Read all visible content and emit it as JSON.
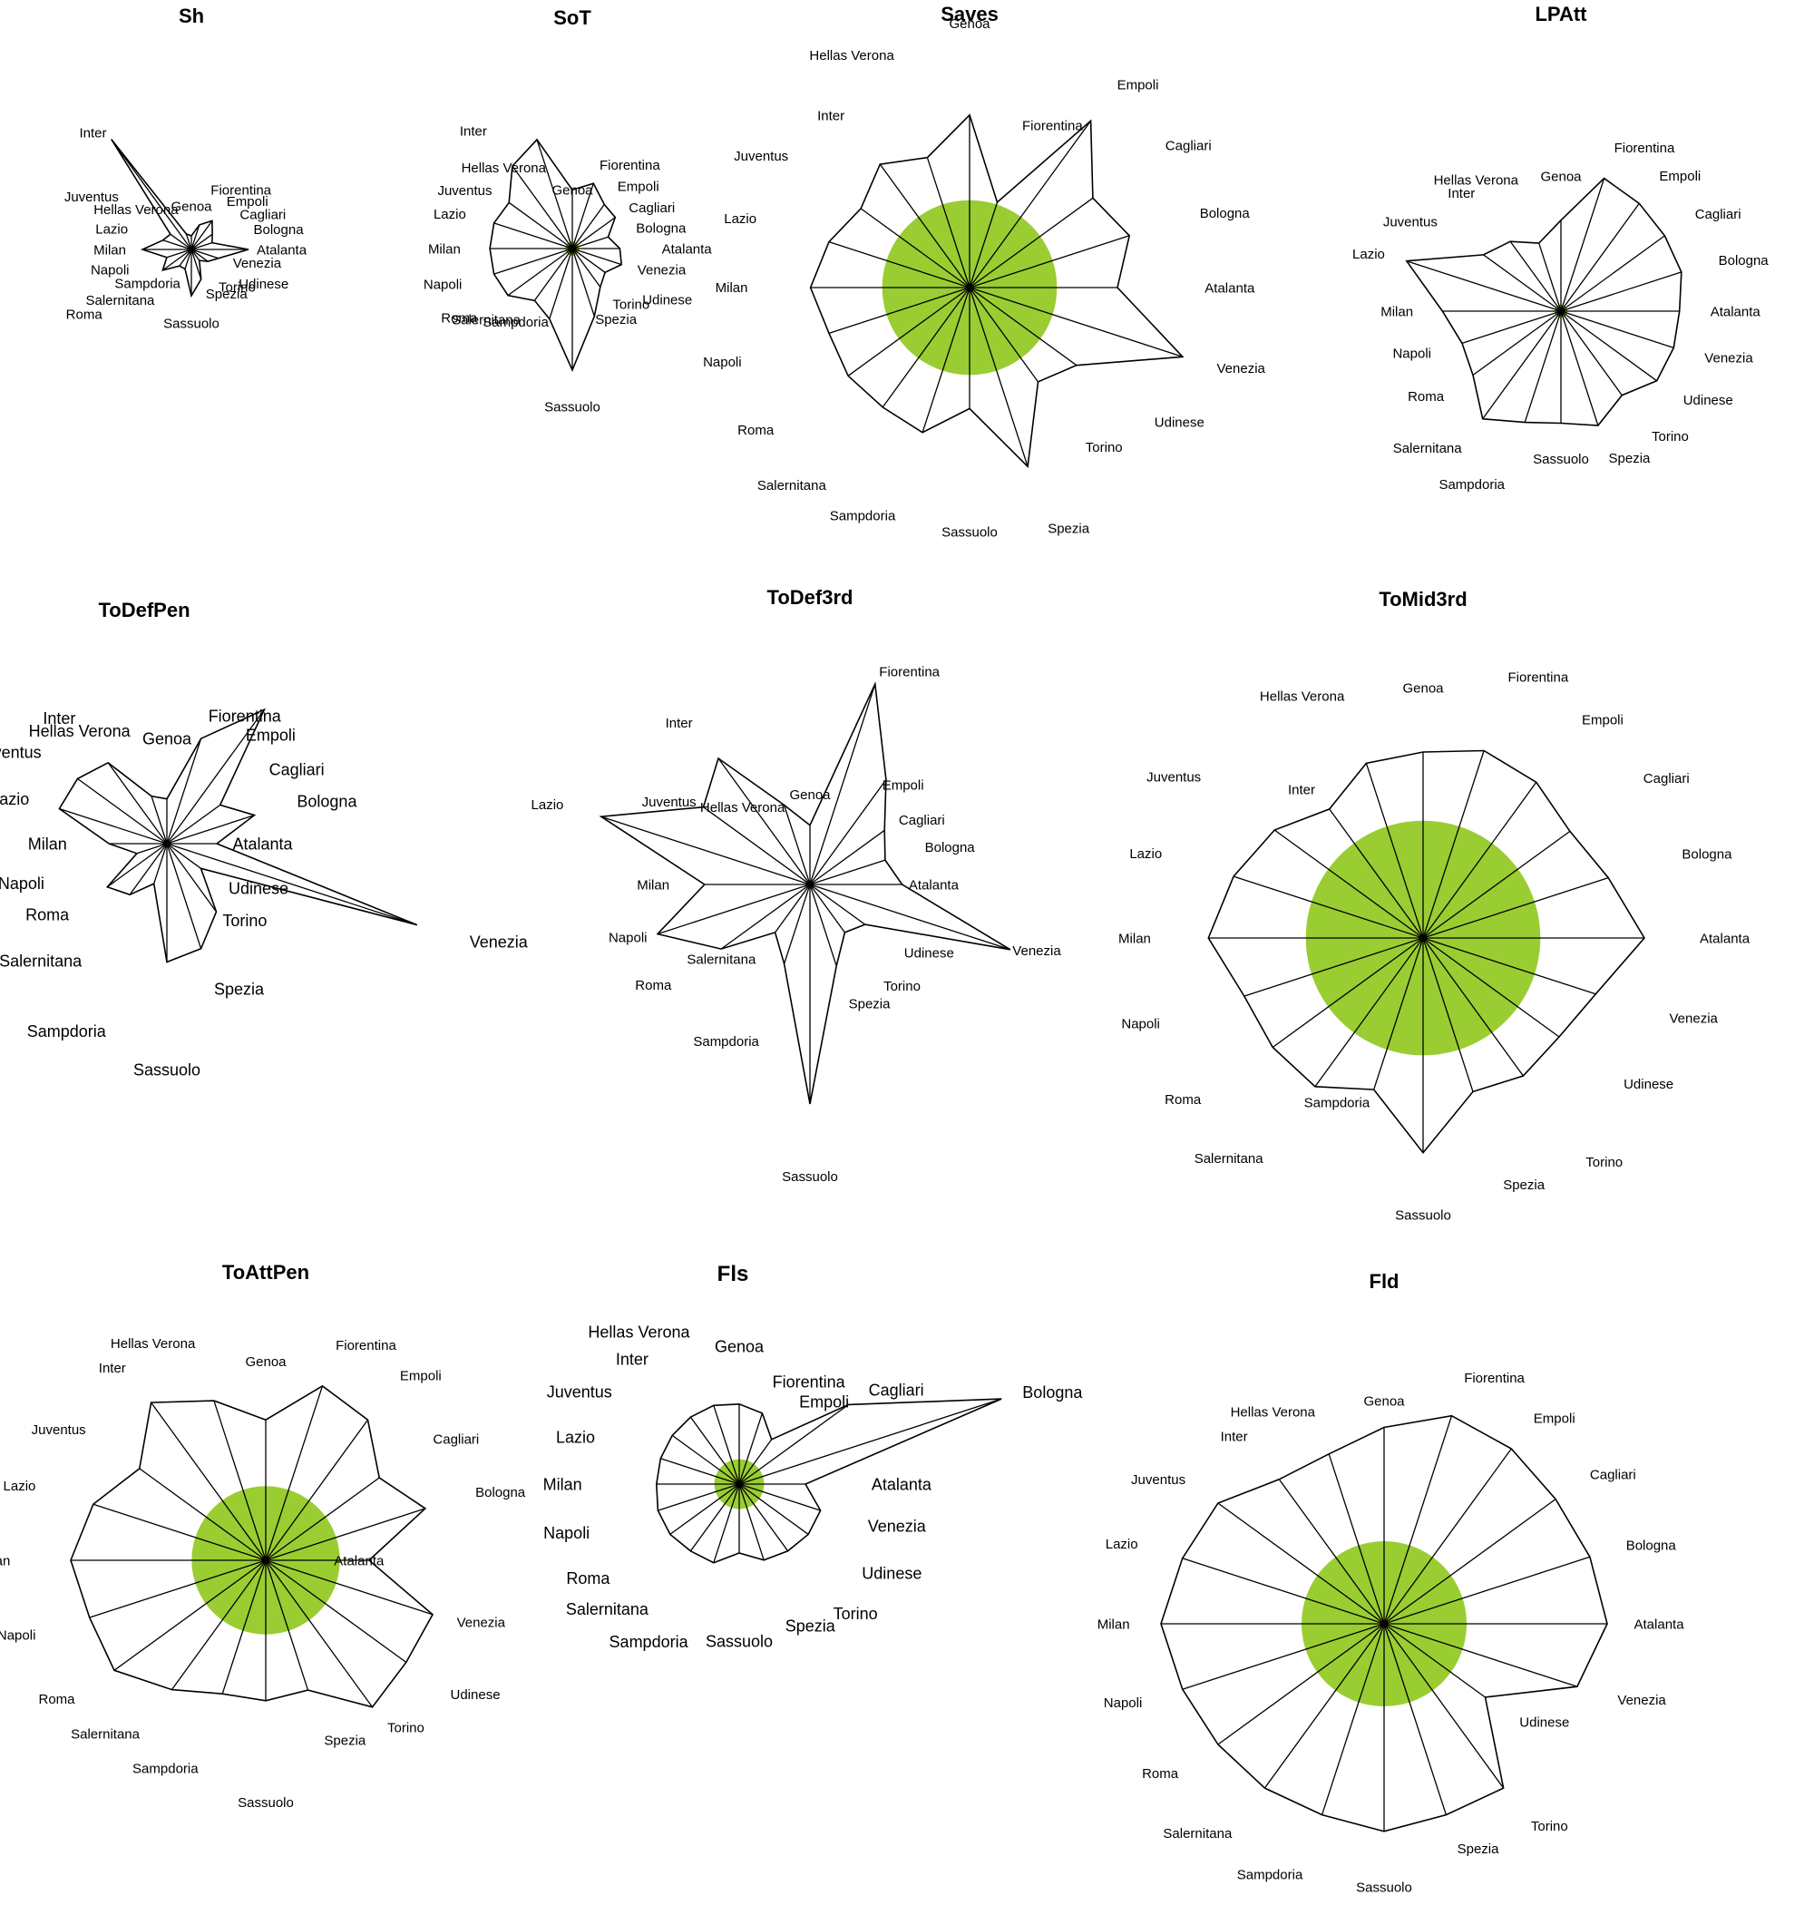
{
  "teams": [
    "Atalanta",
    "Bologna",
    "Cagliari",
    "Empoli",
    "Fiorentina",
    "Genoa",
    "Hellas Verona",
    "Inter",
    "Juventus",
    "Lazio",
    "Milan",
    "Napoli",
    "Roma",
    "Salernitana",
    "Sampdoria",
    "Sassuolo",
    "Spezia",
    "Torino",
    "Udinese",
    "Venezia"
  ],
  "colors": {
    "fill": "#9ACD32",
    "line": "#000000",
    "background": "#FFFFFF"
  },
  "chart_data": [
    {
      "type": "star",
      "title": "Sh",
      "values": [
        0.42,
        0.16,
        0.19,
        0.26,
        0.19,
        0.1,
        0.12,
        1.0,
        0.19,
        0.22,
        0.36,
        0.19,
        0.26,
        0.15,
        0.15,
        0.34,
        0.23,
        0.1,
        0.15,
        0.21
      ],
      "label_radius": [
        0.48,
        0.48,
        0.44,
        0.44,
        0.46,
        0.32,
        0.31,
        1.06,
        0.66,
        0.49,
        0.48,
        0.48,
        0.81,
        0.46,
        0.26,
        0.54,
        0.34,
        0.34,
        0.43,
        0.32
      ],
      "segment_radius": 0.0
    },
    {
      "type": "star",
      "title": "SoT",
      "values": [
        0.34,
        0.27,
        0.38,
        0.39,
        0.49,
        0.42,
        0.82,
        0.73,
        0.56,
        0.59,
        0.59,
        0.59,
        0.57,
        0.46,
        0.53,
        0.87,
        0.51,
        0.34,
        0.29,
        0.37
      ],
      "label_radius": [
        0.64,
        0.48,
        0.5,
        0.55,
        0.63,
        0.42,
        0.61,
        1.04,
        0.71,
        0.8,
        0.8,
        0.83,
        0.84,
        0.63,
        0.55,
        1.13,
        0.53,
        0.49,
        0.62,
        0.49
      ],
      "segment_radius": 0.05
    },
    {
      "type": "star",
      "title": "Saves",
      "values": [
        0.66,
        0.75,
        0.68,
        0.92,
        0.4,
        0.77,
        0.61,
        0.68,
        0.6,
        0.66,
        0.71,
        0.66,
        0.67,
        0.66,
        0.68,
        0.54,
        0.84,
        0.52,
        0.59,
        1.0
      ],
      "label_radius": [
        1.05,
        1.08,
        1.08,
        1.12,
        0.76,
        1.18,
        1.09,
        0.95,
        1.0,
        1.0,
        0.99,
        1.07,
        1.08,
        1.09,
        1.07,
        1.09,
        1.13,
        0.88,
        1.02,
        1.16
      ],
      "segment_radius": 0.39
    },
    {
      "type": "star",
      "title": "LPAtt",
      "values": [
        0.73,
        0.78,
        0.79,
        0.82,
        0.86,
        0.56,
        0.44,
        0.53,
        0.59,
        1.0,
        0.73,
        0.64,
        0.67,
        0.82,
        0.72,
        0.69,
        0.74,
        0.64,
        0.73,
        0.73
      ],
      "label_radius": [
        0.92,
        1.02,
        1.02,
        1.03,
        1.06,
        0.83,
        0.85,
        0.9,
        0.94,
        1.14,
        0.91,
        0.84,
        0.89,
        1.04,
        1.12,
        0.91,
        0.95,
        0.95,
        0.93,
        0.93
      ],
      "segment_radius": 0.04
    },
    {
      "type": "star",
      "title": "ToDefPen",
      "values": [
        0.19,
        0.35,
        0.25,
        0.63,
        0.42,
        0.17,
        0.19,
        0.38,
        0.42,
        0.43,
        0.22,
        0.12,
        0.28,
        0.24,
        0.16,
        0.45,
        0.42,
        0.32,
        0.16,
        1.0
      ],
      "label_radius": [
        0.25,
        0.52,
        0.48,
        0.51,
        0.51,
        0.4,
        0.45,
        0.59,
        0.59,
        0.55,
        0.38,
        0.49,
        0.46,
        0.55,
        0.75,
        0.86,
        0.58,
        0.36,
        0.29,
        1.21
      ],
      "segment_radius": 0.0
    },
    {
      "type": "star",
      "title": "ToDef3rd",
      "values": [
        0.42,
        0.36,
        0.42,
        0.59,
        0.96,
        0.27,
        0.38,
        0.71,
        0.6,
        1.0,
        0.48,
        0.73,
        0.5,
        0.27,
        0.38,
        1.0,
        0.39,
        0.27,
        0.31,
        0.96
      ],
      "label_radius": [
        0.45,
        0.55,
        0.5,
        0.56,
        1.02,
        0.41,
        0.37,
        0.91,
        0.64,
        1.18,
        0.64,
        0.78,
        0.78,
        0.42,
        0.75,
        1.33,
        0.57,
        0.57,
        0.53,
        0.97
      ],
      "segment_radius": 0.02
    },
    {
      "type": "star",
      "title": "ToMid3rd",
      "values": [
        1.0,
        0.88,
        0.82,
        0.87,
        0.89,
        0.84,
        0.83,
        0.72,
        0.83,
        0.9,
        0.97,
        0.85,
        0.84,
        0.83,
        0.72,
        0.97,
        0.73,
        0.77,
        0.76,
        0.82
      ],
      "label_radius": [
        1.25,
        1.23,
        1.23,
        1.22,
        1.24,
        1.13,
        1.15,
        0.83,
        1.24,
        1.24,
        1.23,
        1.25,
        1.24,
        1.23,
        0.78,
        1.25,
        1.17,
        1.25,
        1.12,
        1.17
      ],
      "segment_radius": 0.53
    },
    {
      "type": "star",
      "title": "ToAttPen",
      "values": [
        0.53,
        0.86,
        0.72,
        0.89,
        0.94,
        0.72,
        0.86,
        1.0,
        0.8,
        0.93,
        1.0,
        0.95,
        0.96,
        0.82,
        0.72,
        0.72,
        0.7,
        0.93,
        0.89,
        0.9
      ],
      "label_radius": [
        0.35,
        1.13,
        1.06,
        1.17,
        1.16,
        1.02,
        1.17,
        1.22,
        1.14,
        1.24,
        1.31,
        1.24,
        1.21,
        1.1,
        1.12,
        1.24,
        0.97,
        1.06,
        1.17,
        1.03
      ],
      "segment_radius": 0.38
    },
    {
      "type": "star",
      "title": "Fls",
      "values": [
        0.24,
        1.0,
        0.49,
        0.2,
        0.27,
        0.29,
        0.3,
        0.3,
        0.3,
        0.3,
        0.3,
        0.31,
        0.31,
        0.3,
        0.3,
        0.25,
        0.29,
        0.3,
        0.31,
        0.31
      ],
      "label_radius": [
        0.48,
        1.08,
        0.58,
        0.37,
        0.39,
        0.5,
        0.58,
        0.56,
        0.57,
        0.55,
        0.57,
        0.57,
        0.58,
        0.56,
        0.6,
        0.57,
        0.54,
        0.58,
        0.55,
        0.49
      ],
      "segment_radius": 0.09
    },
    {
      "type": "star",
      "title": "Fld",
      "values": [
        1.0,
        0.97,
        0.95,
        0.97,
        0.98,
        0.88,
        0.8,
        0.8,
        0.92,
        0.95,
        1.0,
        0.95,
        0.92,
        0.91,
        0.9,
        0.93,
        0.9,
        0.91,
        0.56,
        0.91
      ],
      "label_radius": [
        1.12,
        1.14,
        1.14,
        1.14,
        1.16,
        1.0,
        1.0,
        1.04,
        1.1,
        1.16,
        1.14,
        1.14,
        1.14,
        1.16,
        1.18,
        1.18,
        1.06,
        1.12,
        0.75,
        1.1
      ],
      "segment_radius": 0.37
    }
  ]
}
